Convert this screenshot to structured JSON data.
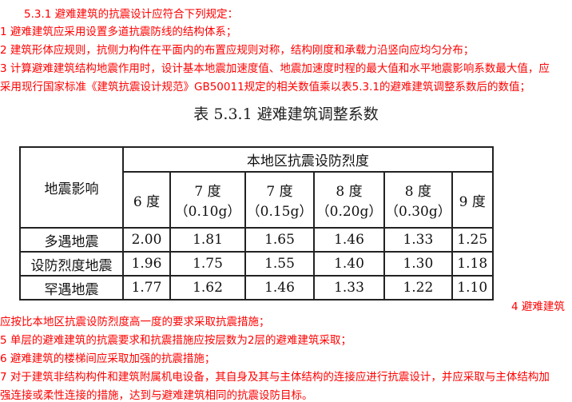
{
  "text": {
    "l0": "5.3.1 避难建筑的抗震设计应符合下列规定：",
    "l1": "1 避难建筑应采用设置多道抗震防线的结构体系；",
    "l2": "2 建筑形体应规则，抗侧力构件在平面内的布置应规则对称，结构刚度和承载力沿竖向应均匀分布；",
    "l3": "3 计算避难建筑结构地震作用时，设计基本地震加速度值、地震加速度时程的最大值和水平地震影响系数最大值，应",
    "l4": "采用现行国家标准《建筑抗震设计规范》GB50011规定的相关数值乘以表5.3.1的避难建筑调整系数后的数值；",
    "l5": "4 避难建筑",
    "l6": "应按比本地区抗震设防烈度高一度的要求采取抗震措施；",
    "l7": "5 单层的避难建筑的抗震要求和抗震措施应按层数为2层的避难建筑采取；",
    "l8": "6 避难建筑的楼梯间应采取加强的抗震措施；",
    "l9": "7 对于建筑非结构构件和建筑附属机电设备，其自身及其与主体结构的连接应进行抗震设计，并应采取与主体结构加",
    "l10": "强连接或柔性连接的措施，达到与避难建筑相同的抗震设防目标。"
  },
  "table": {
    "caption": "表 5.3.1 避难建筑调整系数",
    "row_header": "地震影响",
    "group_header": "本地区抗震设防烈度",
    "columns": [
      [
        "6 度",
        ""
      ],
      [
        "7 度",
        "（0.10g）"
      ],
      [
        "7 度",
        "（0.15g）"
      ],
      [
        "8 度",
        "（0.20g）"
      ],
      [
        "8 度",
        "（0.30g）"
      ],
      [
        "9 度",
        ""
      ]
    ],
    "rows": [
      {
        "label": "多遇地震",
        "values": [
          "2.00",
          "1.81",
          "1.65",
          "1.46",
          "1.33",
          "1.25"
        ]
      },
      {
        "label": "设防烈度地震",
        "values": [
          "1.96",
          "1.75",
          "1.55",
          "1.40",
          "1.30",
          "1.18"
        ]
      },
      {
        "label": "罕遇地震",
        "values": [
          "1.77",
          "1.62",
          "1.46",
          "1.33",
          "1.22",
          "1.10"
        ]
      }
    ]
  }
}
